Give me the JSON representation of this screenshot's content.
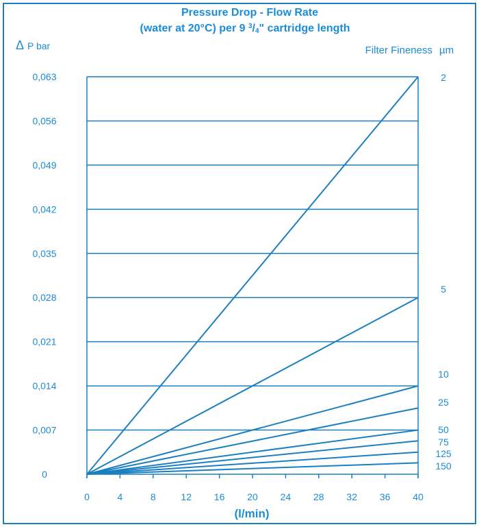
{
  "chart_data": {
    "type": "line",
    "title_line1": "Pressure Drop - Flow Rate",
    "title_line2_prefix": "(water at 20°C) per 9 ",
    "title_frac_num": "3",
    "title_frac_slash": "/",
    "title_frac_den": "4",
    "title_line2_suffix": "\" cartridge length",
    "ylabel_symbol": "Δ",
    "ylabel": "P bar",
    "legend_title": "Filter Fineness",
    "legend_unit": "µm",
    "xlabel": "(l/min)",
    "xlim": [
      0,
      40
    ],
    "ylim": [
      0,
      0.063
    ],
    "x_ticks": [
      0,
      4,
      8,
      12,
      16,
      20,
      24,
      28,
      32,
      36,
      40
    ],
    "y_ticks": [
      {
        "value": 0,
        "label": "0"
      },
      {
        "value": 0.007,
        "label": "0,007"
      },
      {
        "value": 0.014,
        "label": "0,014"
      },
      {
        "value": 0.021,
        "label": "0,021"
      },
      {
        "value": 0.028,
        "label": "0,028"
      },
      {
        "value": 0.035,
        "label": "0,035"
      },
      {
        "value": 0.042,
        "label": "0,042"
      },
      {
        "value": 0.049,
        "label": "0,049"
      },
      {
        "value": 0.056,
        "label": "0,056"
      },
      {
        "value": 0.063,
        "label": "0,063"
      }
    ],
    "series": [
      {
        "name": "2",
        "x": [
          0,
          40
        ],
        "y": [
          0,
          0.063
        ]
      },
      {
        "name": "5",
        "x": [
          0,
          40
        ],
        "y": [
          0,
          0.028
        ]
      },
      {
        "name": "10",
        "x": [
          0,
          40
        ],
        "y": [
          0,
          0.014
        ]
      },
      {
        "name": "25",
        "x": [
          0,
          40
        ],
        "y": [
          0,
          0.0105
        ]
      },
      {
        "name": "50",
        "x": [
          0,
          40
        ],
        "y": [
          0,
          0.007
        ]
      },
      {
        "name": "75",
        "x": [
          0,
          40
        ],
        "y": [
          0,
          0.0053
        ]
      },
      {
        "name": "125",
        "x": [
          0,
          40
        ],
        "y": [
          0,
          0.0035
        ]
      },
      {
        "name": "150",
        "x": [
          0,
          40
        ],
        "y": [
          0,
          0.0018
        ]
      }
    ],
    "grid": "horizontal",
    "colors": {
      "line": "#1a7fc0",
      "text": "#1a8cd8"
    }
  }
}
